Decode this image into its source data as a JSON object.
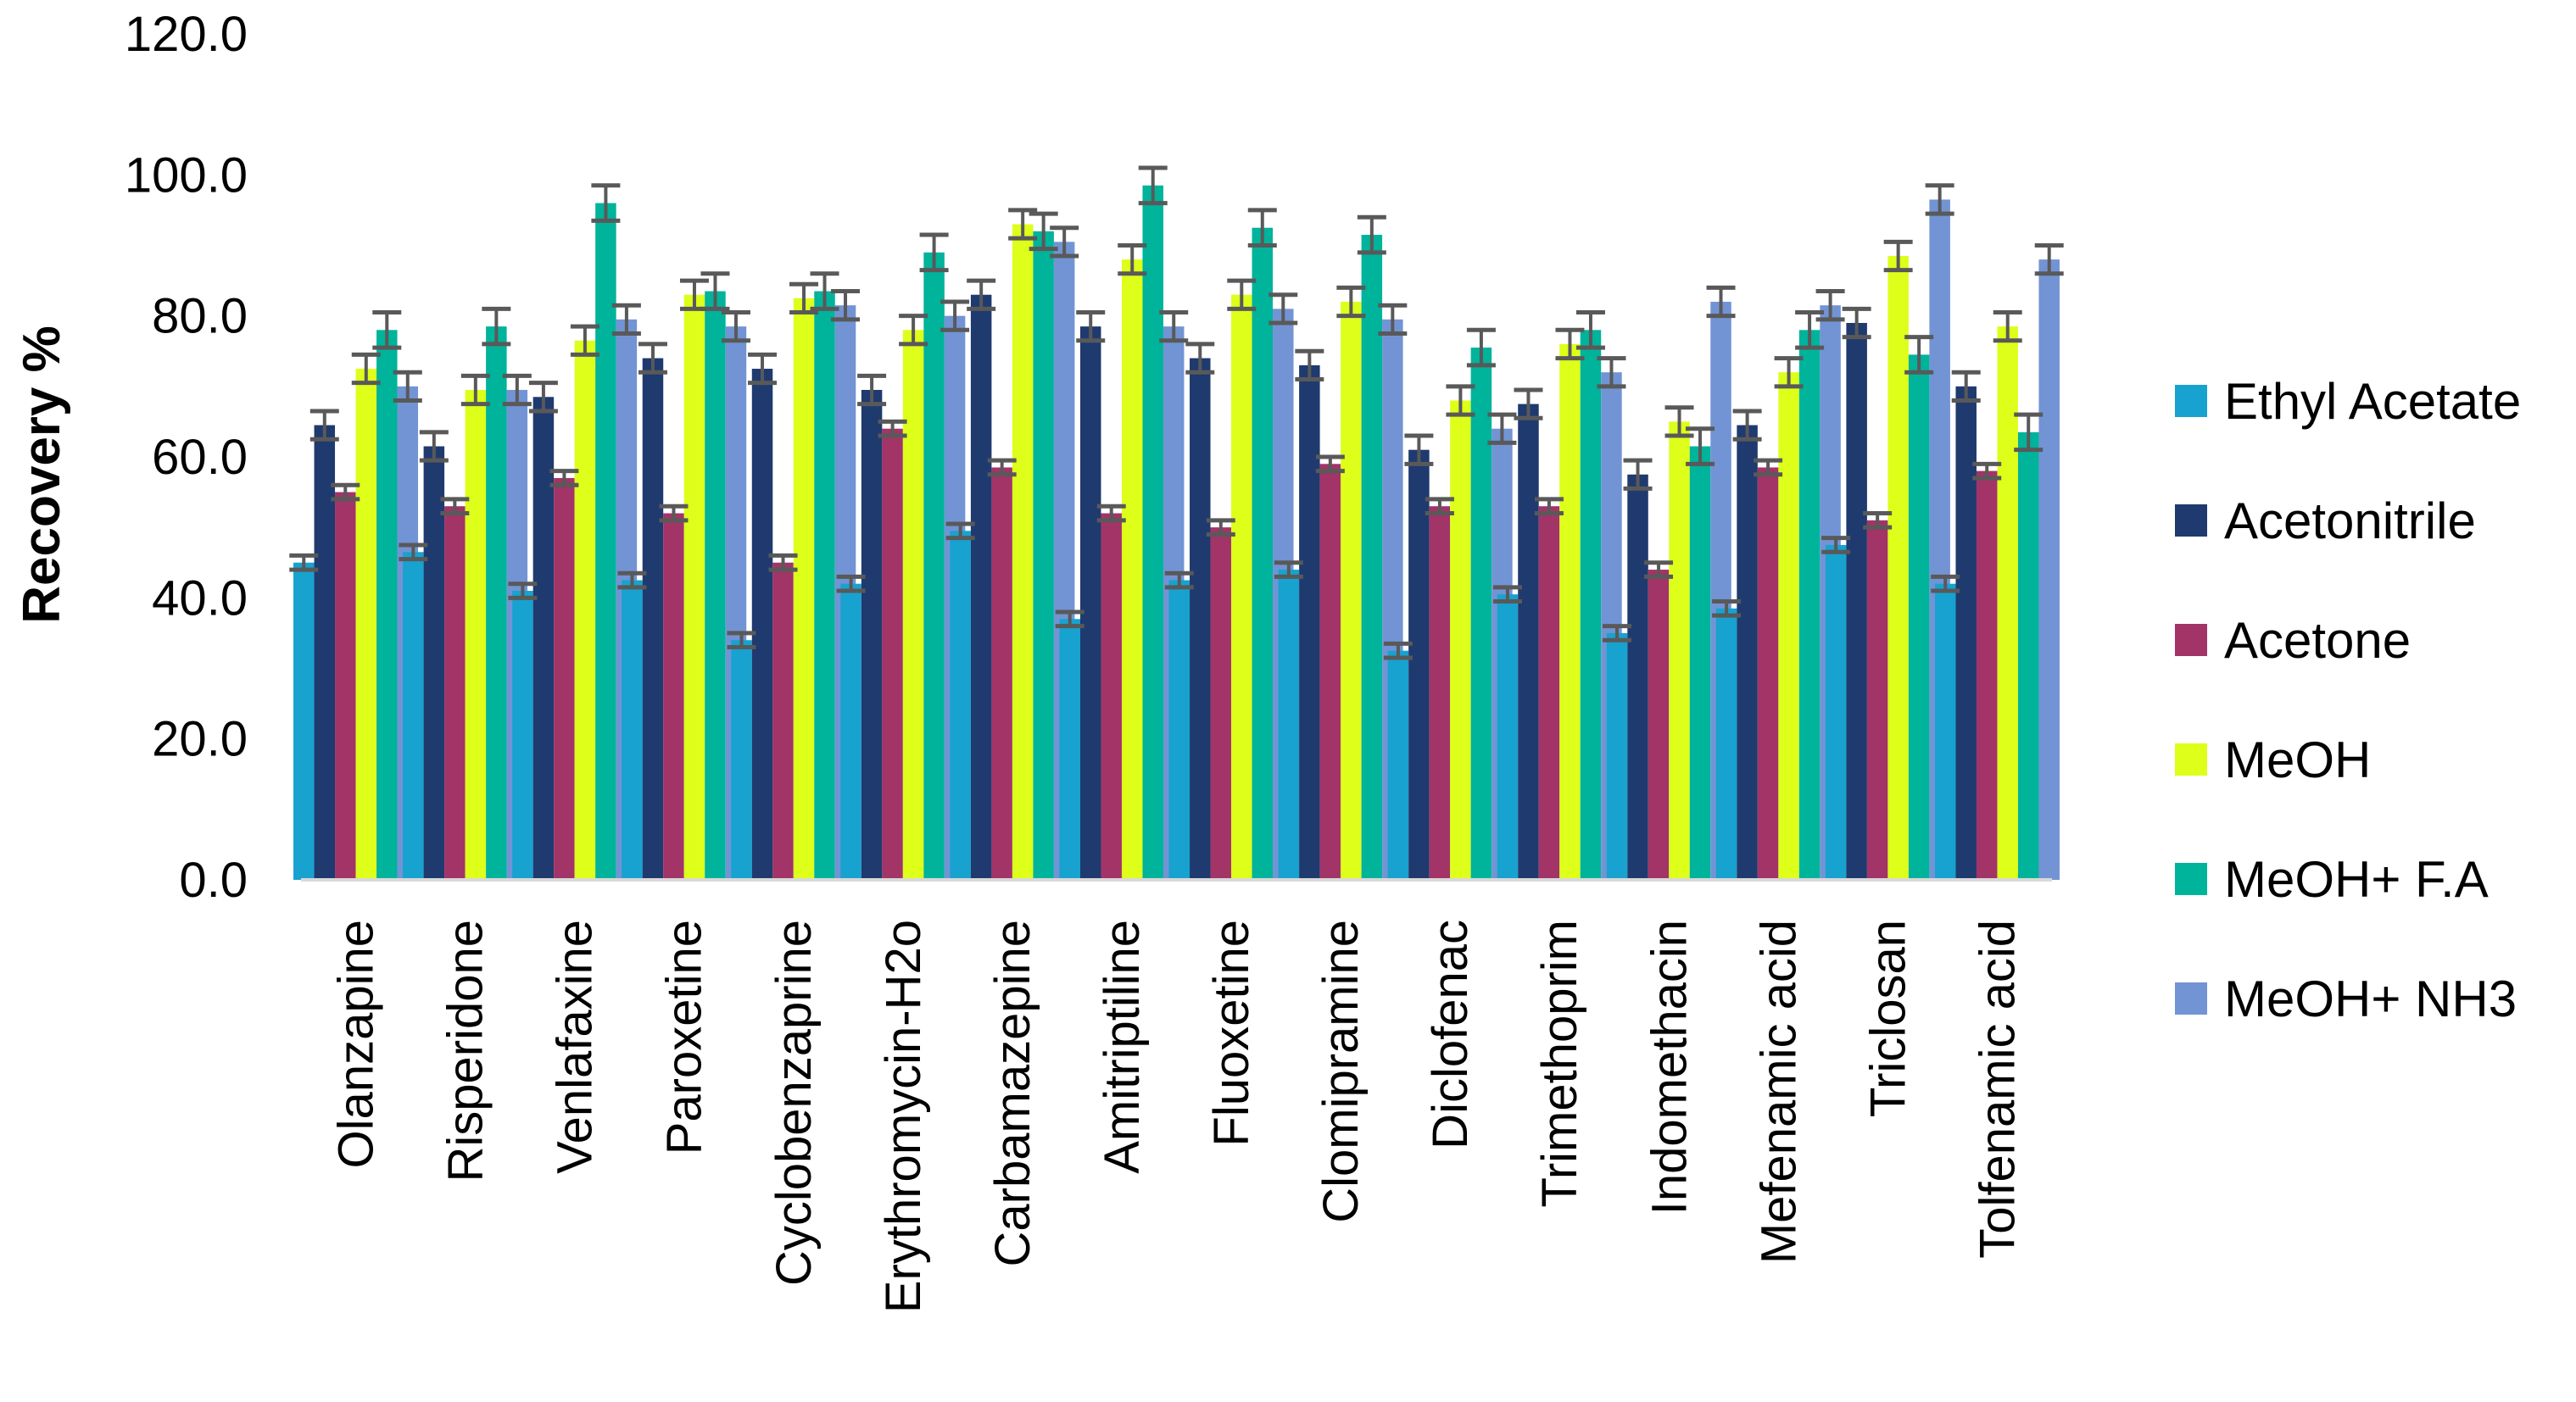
{
  "chart_data": {
    "type": "bar",
    "title": "",
    "xlabel": "",
    "ylabel": "Recovery %",
    "ylim": [
      0,
      120
    ],
    "yticks": [
      "0.0",
      "20.0",
      "40.0",
      "60.0",
      "80.0",
      "100.0",
      "120.0"
    ],
    "grid": false,
    "legend_position": "right",
    "categories": [
      "Olanzapine",
      "Risperidone",
      "Venlafaxine",
      "Paroxetine",
      "Cyclobenzaprine",
      "Erythromycin-H2o",
      "Carbamazepine",
      "Amitriptiline",
      "Fluoxetine",
      "Clomipramine",
      "Diclofenac",
      "Trimethoprim",
      "Indomethacin",
      "Mefenamic acid",
      "Triclosan",
      "Tolfenamic acid"
    ],
    "series": [
      {
        "name": "Ethyl Acetate",
        "color": "#17A2CF",
        "values": [
          45,
          46.5,
          41,
          42.5,
          34,
          42,
          49.5,
          37,
          42.5,
          44,
          32.5,
          40.5,
          35,
          38.5,
          47.5,
          42
        ],
        "errors": [
          1,
          1,
          1,
          1,
          1,
          1,
          1,
          1,
          1,
          1,
          1,
          1,
          1,
          1,
          1,
          1
        ]
      },
      {
        "name": "Acetonitrile",
        "color": "#1F3A6E",
        "values": [
          64.5,
          61.5,
          68.5,
          74,
          72.5,
          69.5,
          83,
          78.5,
          74,
          73,
          61,
          67.5,
          57.5,
          64.5,
          79,
          70
        ],
        "errors": [
          2,
          2,
          2,
          2,
          2,
          2,
          2,
          2,
          2,
          2,
          2,
          2,
          2,
          2,
          2,
          2
        ]
      },
      {
        "name": "Acetone",
        "color": "#A23467",
        "values": [
          55,
          53,
          57,
          52,
          45,
          64,
          58.5,
          52,
          50,
          59,
          53,
          53,
          44,
          58.5,
          51,
          58
        ],
        "errors": [
          1,
          1,
          1,
          1,
          1,
          1,
          1,
          1,
          1,
          1,
          1,
          1,
          1,
          1,
          1,
          1
        ]
      },
      {
        "name": "MeOH",
        "color": "#DDFF1A",
        "values": [
          72.5,
          69.5,
          76.5,
          83,
          82.5,
          78,
          93,
          88,
          83,
          82,
          68,
          76,
          65,
          72,
          88.5,
          78.5
        ],
        "errors": [
          2,
          2,
          2,
          2,
          2,
          2,
          2,
          2,
          2,
          2,
          2,
          2,
          2,
          2,
          2,
          2
        ]
      },
      {
        "name": "MeOH+ F.A",
        "color": "#00B39B",
        "values": [
          78,
          78.5,
          96,
          83.5,
          83.5,
          89,
          92,
          98.5,
          92.5,
          91.5,
          75.5,
          78,
          61.5,
          78,
          74.5,
          63.5
        ],
        "errors": [
          2.5,
          2.5,
          2.5,
          2.5,
          2.5,
          2.5,
          2.5,
          2.5,
          2.5,
          2.5,
          2.5,
          2.5,
          2.5,
          2.5,
          2.5,
          2.5
        ]
      },
      {
        "name": "MeOH+ NH3",
        "color": "#7294D4",
        "values": [
          70,
          69.5,
          79.5,
          78.5,
          81.5,
          80,
          90.5,
          78.5,
          81,
          79.5,
          64,
          72,
          82,
          81.5,
          96.5,
          88
        ],
        "errors": [
          2,
          2,
          2,
          2,
          2,
          2,
          2,
          2,
          2,
          2,
          2,
          2,
          2,
          2,
          2,
          2
        ]
      }
    ]
  }
}
